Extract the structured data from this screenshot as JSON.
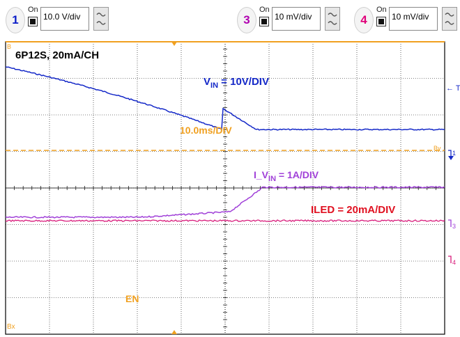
{
  "toolbar": {
    "channels": [
      {
        "number": "1",
        "on_label": "On",
        "scale": "10.0 V/div",
        "color": "#0a1cc8"
      },
      {
        "number": "3",
        "on_label": "On",
        "scale": "10 mV/div",
        "color": "#b000b0"
      },
      {
        "number": "4",
        "on_label": "On",
        "scale": "10 mV/div",
        "color": "#e0007a"
      }
    ]
  },
  "screen": {
    "title": "6P12S, 20mA/CH",
    "timebase_label": "10.0ms/DIV",
    "enable_label": "EN",
    "trigger_marker": "← T",
    "left_top_marker": "B",
    "left_bottom_marker": "Bx",
    "ch1_marker": "1",
    "ch3_marker": "3",
    "ch4_marker": "4",
    "ref_marker": "By"
  },
  "traces": {
    "vin": {
      "label_main": "V",
      "label_sub": "IN",
      "label_rest": " = 10V/DIV",
      "color": "#1428c8"
    },
    "ivin": {
      "label_main": "I_V",
      "label_sub": "IN",
      "label_rest": " = 1A/DIV",
      "color": "#a040d8"
    },
    "iled": {
      "label": "ILED = 20mA/DIV",
      "color": "#e01020"
    }
  },
  "colors": {
    "grid": "#000000",
    "accent_orange": "#f0a020",
    "trace_ch3": "#a040d8",
    "trace_ch4": "#d81a7a",
    "trace_ch1": "#1428c8"
  }
}
